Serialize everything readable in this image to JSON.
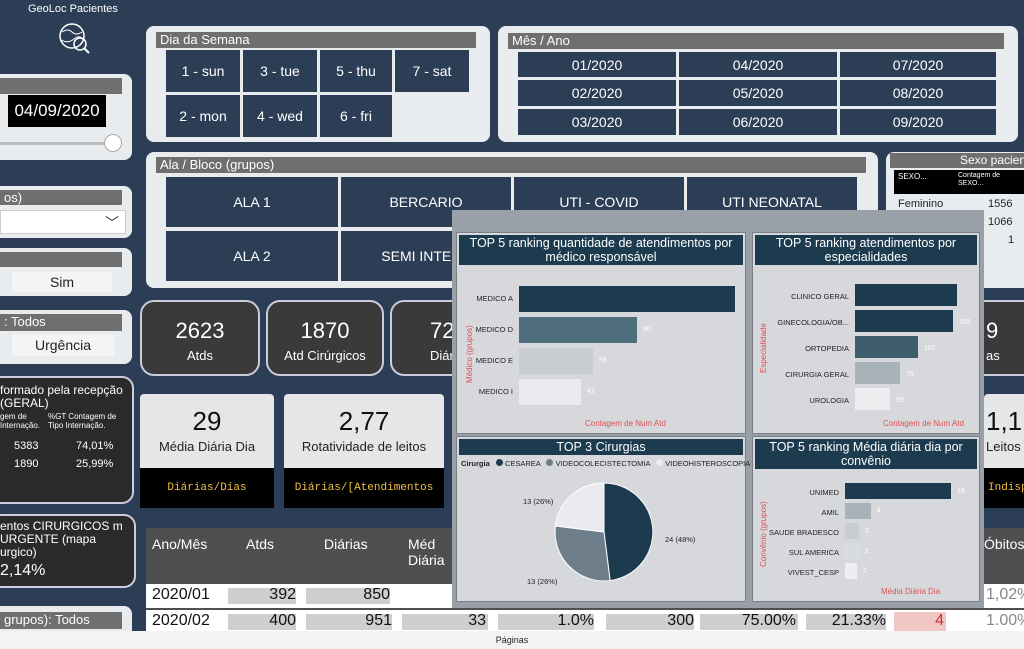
{
  "app": {
    "logo_title": "GeoLoc Pacientes"
  },
  "left": {
    "date_value": "04/09/2020",
    "dropdown_label": "os)",
    "sim_label": "Sim",
    "todos_title": ": Todos",
    "urgencia_label": "Urgência",
    "recepcao_title": "formado pela recepção (GERAL)",
    "recepcao_h1": "gem de Internação.",
    "recepcao_h2": "%GT Contagem de Tipo Internação.",
    "recepcao_rows": [
      {
        "a": "5383",
        "b": "74,01%"
      },
      {
        "a": "1890",
        "b": "25,99%"
      }
    ],
    "cirurgicos_text": "entos CIRURGICOS m URGENTE (mapa urgico)",
    "cirurgicos_value": "2,14%",
    "grupos_text": "grupos): Todos"
  },
  "dia_semana": {
    "title": "Dia da Semana",
    "items": [
      "1 - sun",
      "3 - tue",
      "5 - thu",
      "7 - sat",
      "2 - mon",
      "4 - wed",
      "6 - fri"
    ]
  },
  "mes_ano": {
    "title": "Mês / Ano",
    "items": [
      "01/2020",
      "04/2020",
      "07/2020",
      "02/2020",
      "05/2020",
      "08/2020",
      "03/2020",
      "06/2020",
      "09/2020"
    ]
  },
  "ala": {
    "title": "Ala / Bloco (grupos)",
    "items": [
      "ALA 1",
      "BERCARIO",
      "UTI - COVID",
      "UTI NEONATAL",
      "ALA 2",
      "SEMI INTENS"
    ]
  },
  "sexo": {
    "title": "Sexo pacien",
    "h1": "SEXO...",
    "h2": "Contagem de SEXO...",
    "rows": [
      {
        "label": "Feminino",
        "value": "1556"
      },
      {
        "label": "",
        "value": "1066"
      },
      {
        "label": "",
        "value": "1"
      }
    ]
  },
  "kpis": [
    {
      "value": "2623",
      "label": "Atds"
    },
    {
      "value": "1870",
      "label": "Atd Cirúrgicos"
    },
    {
      "value": "72",
      "label": "Diár"
    },
    {
      "value": "9",
      "label": "as"
    }
  ],
  "minis": [
    {
      "value": "29",
      "label": "Média Diária Dia",
      "formula": "Diárias/Dias"
    },
    {
      "value": "2,77",
      "label": "Rotatividade de leitos",
      "formula": "Diárias/[Atendimentos"
    },
    {
      "value": "1,1",
      "label": "Leitos In",
      "formula": "Indisp"
    }
  ],
  "table": {
    "headers": [
      "Ano/Mês",
      "Atds",
      "Diárias",
      "Méd Diária",
      "Óbitos"
    ],
    "rows": [
      {
        "mes": "2020/01",
        "atds": "392",
        "diarias": "850",
        "obitos": "1,02%"
      },
      {
        "mes": "2020/02",
        "atds": "400",
        "diarias": "951",
        "med": "33",
        "c1": "1.0%",
        "c2": "300",
        "c3": "75.00%",
        "c4": "21.33%",
        "c5": "4",
        "obitos": "1.00%"
      }
    ]
  },
  "footer": {
    "label": "Páginas"
  },
  "charts": {
    "c1_title": "TOP 5 ranking quantidade de atendimentos por médico responsável",
    "c1_ylabel": "Médico (grupos)",
    "c1_xlabel": "Contagem de Num Atd",
    "c2_title": "TOP 5 ranking atendimentos por especialidades",
    "c2_ylabel": "Especialidade",
    "c2_xlabel": "Contagem de Num Atd",
    "c3_title": "TOP 3 Cirurgias",
    "c3_legend_title": "Cirurgia",
    "c4_title": "TOP 5 ranking Média diária dia por convênio",
    "c4_ylabel": "Convênio (grupos)",
    "c4_xlabel": "Média Diária Dia"
  },
  "chart_data": [
    {
      "type": "bar",
      "orientation": "horizontal",
      "title": "TOP 5 ranking quantidade de atendimentos por médico responsável",
      "xlabel": "Contagem de Num Atd",
      "ylabel": "Médico (grupos)",
      "categories": [
        "MEDICO A",
        "MEDICO D",
        "MEDICO E",
        "MEDICO I"
      ],
      "values": [
        null,
        80,
        58,
        42
      ],
      "colors": [
        "#1c3b4f",
        "#4e6e7e",
        "#c9cdd2",
        "#e9ebee"
      ]
    },
    {
      "type": "bar",
      "orientation": "horizontal",
      "title": "TOP 5 ranking atendimentos por especialidades",
      "xlabel": "Contagem de Num Atd",
      "ylabel": "Especialidade",
      "categories": [
        "CLINICO GERAL",
        "GINECOLOGIA/OB...",
        "ORTOPEDIA",
        "CIRURGIA GERAL",
        "UROLOGIA"
      ],
      "values": [
        null,
        165,
        107,
        76,
        59
      ],
      "colors": [
        "#1c3b4f",
        "#1c3b4f",
        "#3d5c6c",
        "#a8b2b9",
        "#eceef0"
      ]
    },
    {
      "type": "pie",
      "title": "TOP 3 Cirurgias",
      "legend_title": "Cirurgia",
      "legend_placement": "top",
      "categories": [
        "CESAREA",
        "VIDEOCOLECISTECTOMIA",
        "VIDEOHISTEROSCOPIA"
      ],
      "values": [
        24,
        13,
        13
      ],
      "labels": [
        "24 (48%)",
        "13 (26%)",
        "13 (26%)"
      ],
      "colors": [
        "#1c3b4f",
        "#6e7f8b",
        "#e9ebee"
      ]
    },
    {
      "type": "bar",
      "orientation": "horizontal",
      "title": "TOP 5 ranking Média diária dia por convênio",
      "xlabel": "Média Diária Dia",
      "ylabel": "Convênio (grupos)",
      "categories": [
        "UNIMED",
        "AMIL",
        "SAUDE BRADESCO",
        "SUL AMERICA",
        "VIVEST_CESP"
      ],
      "values": [
        16,
        4,
        2,
        2,
        2
      ],
      "colors": [
        "#1c3b4f",
        "#a8b2b9",
        "#c9cdd2",
        "#d8dbdf",
        "#eceef0"
      ]
    }
  ]
}
